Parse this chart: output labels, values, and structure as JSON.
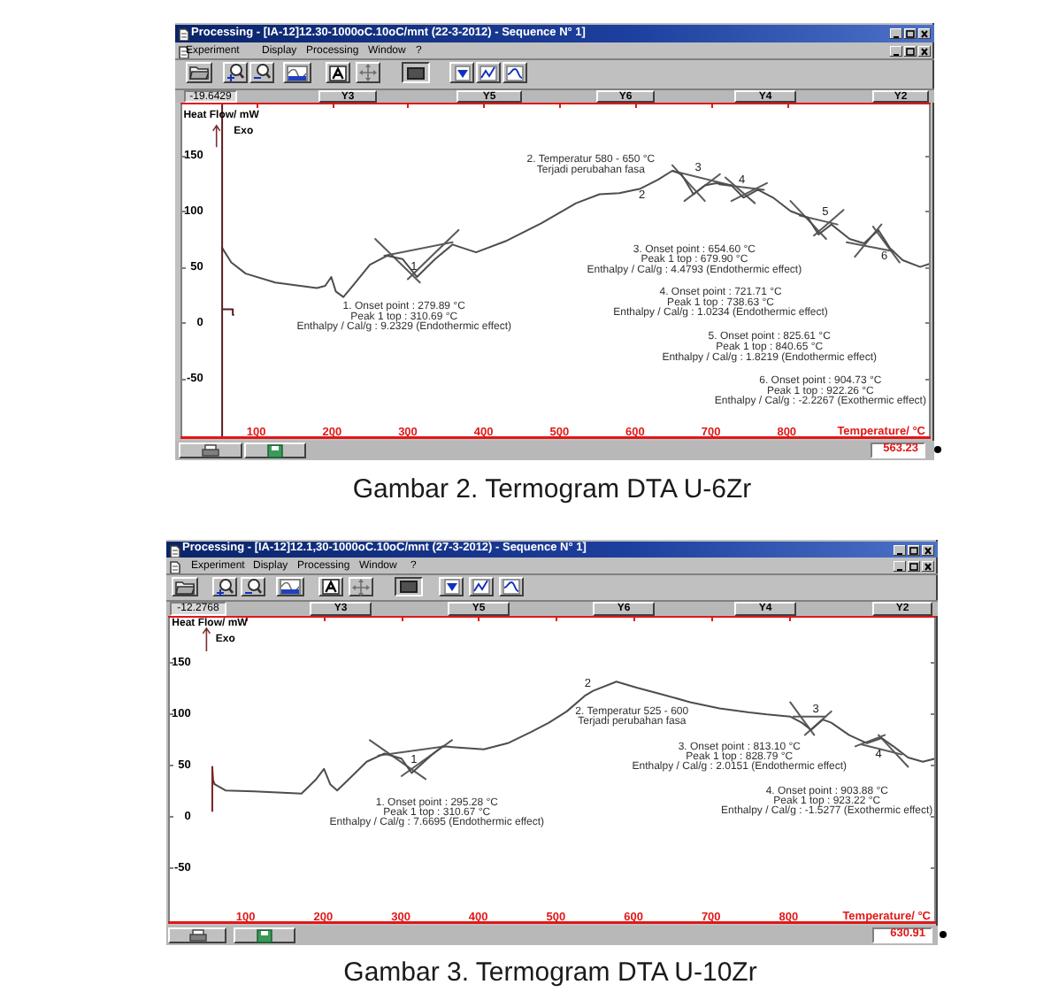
{
  "chart_data": [
    {
      "type": "line",
      "xlabel": "Temperature/ °C",
      "ylabel": "Heat Flow/ mW",
      "xlim": [
        0,
        990
      ],
      "ylim": [
        -104,
        197
      ],
      "xticks": [
        100,
        200,
        300,
        400,
        500,
        600,
        700,
        800
      ],
      "yticks": [
        -50,
        0,
        50,
        100,
        150
      ],
      "series": [
        {
          "color": "#5a1f1f",
          "x": [
            70,
            69,
            55,
            55,
            55,
            55
          ],
          "values": [
            7,
            12,
            12,
            -104,
            197,
            67
          ]
        },
        {
          "color": "#4d4d4d",
          "x": [
            55,
            67,
            86,
            125,
            180,
            191,
            199,
            205,
            215,
            226,
            250,
            273,
            293,
            312,
            336,
            359,
            390,
            429,
            476,
            522,
            553,
            579,
            607,
            630,
            649,
            661,
            677,
            692,
            707,
            727,
            743,
            762,
            782,
            805,
            828,
            842,
            859,
            883,
            902,
            921,
            936,
            953,
            976,
            990
          ],
          "values": [
            67,
            54,
            44,
            36,
            31,
            33,
            41,
            28,
            23,
            32,
            52,
            60,
            57,
            41,
            57,
            70,
            63,
            73,
            89,
            107,
            115,
            116,
            120,
            128,
            136,
            133,
            115,
            123,
            125,
            123,
            112,
            119,
            112,
            100,
            94,
            79,
            88,
            75,
            71,
            83,
            67,
            56,
            50,
            53
          ]
        },
        {
          "color": "#5a5a5a",
          "x": [
            269,
            359
          ],
          "values": [
            60,
            72
          ]
        },
        {
          "color": "#5a5a5a",
          "x": [
            257,
            316
          ],
          "values": [
            75,
            36
          ]
        },
        {
          "color": "#5a5a5a",
          "x": [
            300,
            367
          ],
          "values": [
            39,
            83
          ]
        },
        {
          "color": "#5a5a5a",
          "x": [
            649,
            692
          ],
          "values": [
            141,
            109
          ]
        },
        {
          "color": "#5a5a5a",
          "x": [
            665,
            712
          ],
          "values": [
            109,
            133
          ]
        },
        {
          "color": "#5a5a5a",
          "x": [
            649,
            727
          ],
          "values": [
            136,
            123
          ]
        },
        {
          "color": "#5a5a5a",
          "x": [
            719,
            758
          ],
          "values": [
            130,
            107
          ]
        },
        {
          "color": "#5a5a5a",
          "x": [
            727,
            774
          ],
          "values": [
            109,
            125
          ]
        },
        {
          "color": "#5a5a5a",
          "x": [
            711,
            770
          ],
          "values": [
            124,
            119
          ]
        },
        {
          "color": "#5a5a5a",
          "x": [
            805,
            852
          ],
          "values": [
            109,
            75
          ]
        },
        {
          "color": "#5a5a5a",
          "x": [
            836,
            875
          ],
          "values": [
            78,
            101
          ]
        },
        {
          "color": "#5a5a5a",
          "x": [
            817,
            867
          ],
          "values": [
            96,
            88
          ]
        },
        {
          "color": "#5a5a5a",
          "x": [
            890,
            925
          ],
          "values": [
            59,
            88
          ]
        },
        {
          "color": "#5a5a5a",
          "x": [
            914,
            949
          ],
          "values": [
            86,
            54
          ]
        },
        {
          "color": "#5a5a5a",
          "x": [
            879,
            941
          ],
          "values": [
            72,
            64
          ]
        }
      ],
      "annotations": [
        "Processing - [IA-12]12.30-1000oC.10oC/mnt (22-3-2012) - Sequence N° 1]",
        "Experiment",
        "Display",
        "Processing",
        "Window",
        "?",
        "-19.6429",
        "Y3",
        "Y5",
        "Y6",
        "Y4",
        "Y2",
        "Exo",
        "2. Temperatur 580 - 650 °C\nTerjadi perubahan fasa",
        "1. Onset point : 279.89 °C\nPeak 1 top : 310.69 °C\nEnthalpy / Cal/g : 9.2329 (Endothermic effect)",
        "3. Onset point : 654.60 °C\nPeak 1 top : 679.90 °C\nEnthalpy / Cal/g : 4.4793 (Endothermic effect)",
        "4. Onset point : 721.71 °C\nPeak 1 top : 738.63 °C\nEnthalpy / Cal/g : 1.0234 (Endothermic effect)",
        "5. Onset point : 825.61 °C\nPeak 1 top : 840.65 °C\nEnthalpy / Cal/g : 1.8219 (Endothermic effect)",
        "6. Onset point : 904.73 °C\nPeak 1 top : 922.26 °C\nEnthalpy / Cal/g : -2.2267 (Exothermic effect)",
        "563.23",
        "Gambar 2. Termogram DTA U-6Zr",
        {
          "text": "1",
          "x": 308,
          "y": 50
        },
        {
          "text": "2",
          "x": 609,
          "y": 114
        },
        {
          "text": "3",
          "x": 683,
          "y": 139
        },
        {
          "text": "4",
          "x": 741,
          "y": 128
        },
        {
          "text": "5",
          "x": 851,
          "y": 99
        },
        {
          "text": "6",
          "x": 929,
          "y": 60
        }
      ]
    },
    {
      "type": "line",
      "xlabel": "Temperature/ °C",
      "ylabel": "Heat Flow/ mW",
      "xlim": [
        0,
        990
      ],
      "ylim": [
        -105,
        195
      ],
      "xticks": [
        100,
        200,
        300,
        400,
        500,
        600,
        700,
        800
      ],
      "yticks": [
        -50,
        0,
        50,
        100,
        150
      ],
      "series": [
        {
          "color": "#7b2323",
          "x": [
            57,
            57,
            58,
            60
          ],
          "values": [
            5,
            48,
            35,
            31
          ]
        },
        {
          "color": "#4d4d4d",
          "x": [
            60,
            74,
            111,
            172,
            191,
            201,
            209,
            218,
            233,
            256,
            279,
            301,
            314,
            339,
            354,
            407,
            438,
            468,
            491,
            514,
            537,
            548,
            578,
            605,
            635,
            673,
            711,
            749,
            772,
            802,
            817,
            829,
            844,
            855,
            878,
            901,
            920,
            935,
            954,
            973,
            989
          ],
          "values": [
            31,
            25,
            24,
            22,
            36,
            46,
            31,
            25,
            36,
            53,
            61,
            56,
            42,
            59,
            68,
            65,
            71,
            82,
            91,
            102,
            117,
            122,
            131,
            125,
            119,
            111,
            105,
            101,
            99,
            97,
            91,
            84,
            94,
            91,
            79,
            71,
            76,
            68,
            57,
            53,
            56
          ]
        },
        {
          "color": "#5a5a5a",
          "x": [
            260,
            332
          ],
          "values": [
            74,
            36
          ]
        },
        {
          "color": "#5a5a5a",
          "x": [
            301,
            366
          ],
          "values": [
            39,
            74
          ]
        },
        {
          "color": "#5a5a5a",
          "x": [
            271,
            358
          ],
          "values": [
            59,
            68
          ]
        },
        {
          "color": "#5a5a5a",
          "x": [
            802,
            833
          ],
          "values": [
            111,
            79
          ]
        },
        {
          "color": "#5a5a5a",
          "x": [
            821,
            855
          ],
          "values": [
            79,
            102
          ]
        },
        {
          "color": "#5a5a5a",
          "x": [
            806,
            848
          ],
          "values": [
            97,
            97
          ]
        },
        {
          "color": "#5a5a5a",
          "x": [
            886,
            924
          ],
          "values": [
            68,
            79
          ]
        },
        {
          "color": "#5a5a5a",
          "x": [
            916,
            954
          ],
          "values": [
            79,
            48
          ]
        },
        {
          "color": "#5a5a5a",
          "x": [
            893,
            946
          ],
          "values": [
            70,
            60
          ]
        }
      ],
      "annotations": [
        "Processing - [IA-12]12.1,30-1000oC.10oC/mnt (27-3-2012) - Sequence N° 1]",
        "Experiment",
        "Display",
        "Processing",
        "Window",
        "?",
        "-12.2768",
        "Y3",
        "Y5",
        "Y6",
        "Y4",
        "Y2",
        "Exo",
        "2. Temperatur 525 - 600\nTerjadi perubahan fasa",
        "1. Onset point : 295.28 °C\nPeak 1 top : 310.67 °C\nEnthalpy / Cal/g : 7.6695 (Endothermic effect)",
        "3. Onset point : 813.10 °C\nPeak 1 top : 828.79 °C\nEnthalpy / Cal/g : 2.0151 (Endothermic effect)",
        "4. Onset point : 903.88 °C\nPeak 1 top : 923.22 °C\nEnthalpy / Cal/g : -1.5277 (Exothermic effect)",
        "630.91",
        "Gambar 3. Termogram DTA U-10Zr",
        {
          "text": "1",
          "x": 317,
          "y": 55
        },
        {
          "text": "2",
          "x": 541,
          "y": 129
        },
        {
          "text": "3",
          "x": 835,
          "y": 104
        },
        {
          "text": "4",
          "x": 916,
          "y": 60
        }
      ]
    }
  ]
}
